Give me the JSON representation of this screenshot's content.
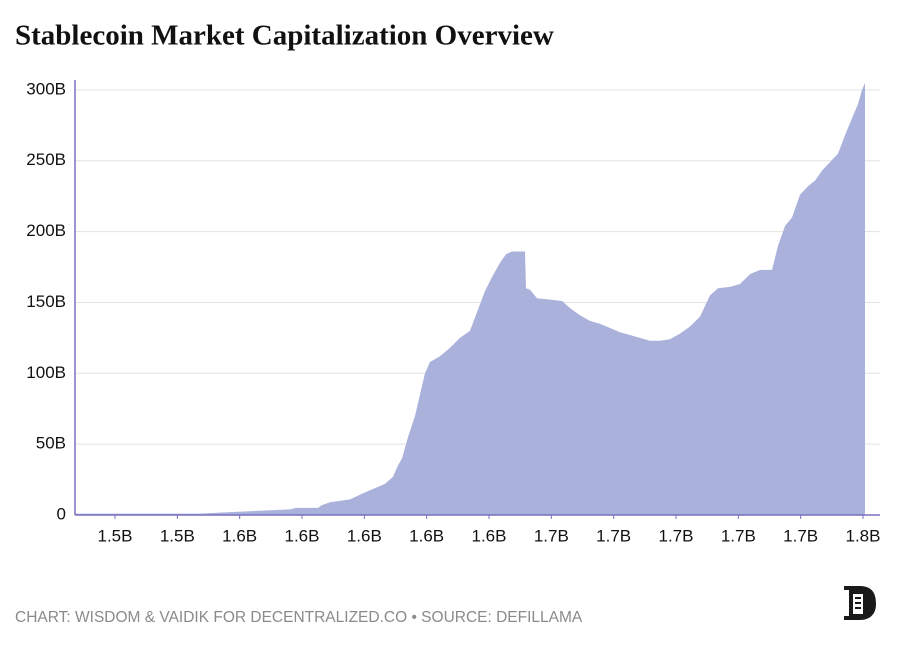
{
  "chart_data": {
    "type": "area",
    "title": "Stablecoin Market Capitalization Overview",
    "footer": "CHART: WISDOM & VAIDIK FOR DECENTRALIZED.CO • SOURCE: DEFILLAMA",
    "color": "#aab2db",
    "axis_color": "#7a70c2",
    "grid": true,
    "x": [
      1507165800,
      1547272675,
      1556898325,
      1566523975,
      1576149625,
      1578074755,
      1585133565,
      1586416985,
      1588983825,
      1595400925,
      1600213750,
      1603422300,
      1606630850,
      1609197690,
      1610801965,
      1612085385,
      1614010515,
      1616256500,
      1617860775,
      1619465050,
      1621069325,
      1624277875,
      1627486425,
      1630694975,
      1633903525,
      1636470365,
      1638716350,
      1640962335,
      1643529175,
      1645454305,
      1647379435,
      1649946275,
      1651550550,
      1651871405,
      1653154825,
      1655400810,
      1659571925,
      1663422185,
      1665989025,
      1669197575,
      1672406125,
      1675614675,
      1678823225,
      1682031775,
      1685240325,
      1688448875,
      1691657425,
      1694865975,
      1698074525,
      1701283075,
      1704491625,
      1707700175,
      1710908725,
      1713475565,
      1717325825,
      1720534375,
      1723742925,
      1726951475,
      1730801735,
      1732726865,
      1734972850,
      1737218835,
      1739785675,
      1742352515,
      1744598500,
      1746844485,
      1749411325,
      1751978165,
      1754224150,
      1756470135,
      1758395265,
      1759678685,
      1760641250
    ],
    "values": [
      1000000000.0,
      1000000000.0,
      2000000000.0,
      3000000000.0,
      4000000000.0,
      5000000000.0,
      5000000000.0,
      7000000000.0,
      9000000000.0,
      11000000000.0,
      16000000000.0,
      19000000000.0,
      22000000000.0,
      27000000000.0,
      35000000000.0,
      40000000000.0,
      55000000000.0,
      70000000000.0,
      85000000000.0,
      100000000000.0,
      108000000000.0,
      112000000000.0,
      118000000000.0,
      125000000000.0,
      130000000000.0,
      145000000000.0,
      158000000000.0,
      168000000000.0,
      178000000000.0,
      184000000000.0,
      186000000000.0,
      186000000000.0,
      186000000000.0,
      160000000000.0,
      159000000000.0,
      153000000000.0,
      152000000000.0,
      151000000000.0,
      146000000000.0,
      141000000000.0,
      137000000000.0,
      135000000000.0,
      132000000000.0,
      129000000000.0,
      127000000000.0,
      125000000000.0,
      123000000000.0,
      123000000000.0,
      124000000000.0,
      128000000000.0,
      133000000000.0,
      140000000000.0,
      155000000000.0,
      160000000000.0,
      161000000000.0,
      163000000000.0,
      170000000000.0,
      173000000000.0,
      173000000000.0,
      190000000000.0,
      204000000000.0,
      210000000000.0,
      226000000000.0,
      232000000000.0,
      236000000000.0,
      243000000000.0,
      249000000000.0,
      255000000000.0,
      268000000000.0,
      280000000000.0,
      290000000000.0,
      300000000000.0,
      305000000000.0
    ],
    "xlim": [
      1507165800,
      1765454075
    ],
    "ylim": [
      0,
      307000000000.0
    ],
    "xticks": [
      {
        "value": 1520000000,
        "label": "1.5B"
      },
      {
        "value": 1540000000,
        "label": "1.5B"
      },
      {
        "value": 1560000000,
        "label": "1.6B"
      },
      {
        "value": 1580000000,
        "label": "1.6B"
      },
      {
        "value": 1600000000,
        "label": "1.6B"
      },
      {
        "value": 1620000000,
        "label": "1.6B"
      },
      {
        "value": 1640000000,
        "label": "1.6B"
      },
      {
        "value": 1660000000,
        "label": "1.7B"
      },
      {
        "value": 1680000000,
        "label": "1.7B"
      },
      {
        "value": 1700000000,
        "label": "1.7B"
      },
      {
        "value": 1720000000,
        "label": "1.7B"
      },
      {
        "value": 1740000000,
        "label": "1.7B"
      },
      {
        "value": 1760000000,
        "label": "1.8B"
      }
    ],
    "yticks": [
      0,
      {
        "value": 50000000000.0,
        "label": "50B"
      },
      {
        "value": 100000000000.0,
        "label": "100B"
      },
      {
        "value": 150000000000.0,
        "label": "150B"
      },
      {
        "value": 200000000000.0,
        "label": "200B"
      },
      {
        "value": 250000000000.0,
        "label": "250B"
      },
      {
        "value": 300000000000.0,
        "label": "300B"
      }
    ]
  }
}
